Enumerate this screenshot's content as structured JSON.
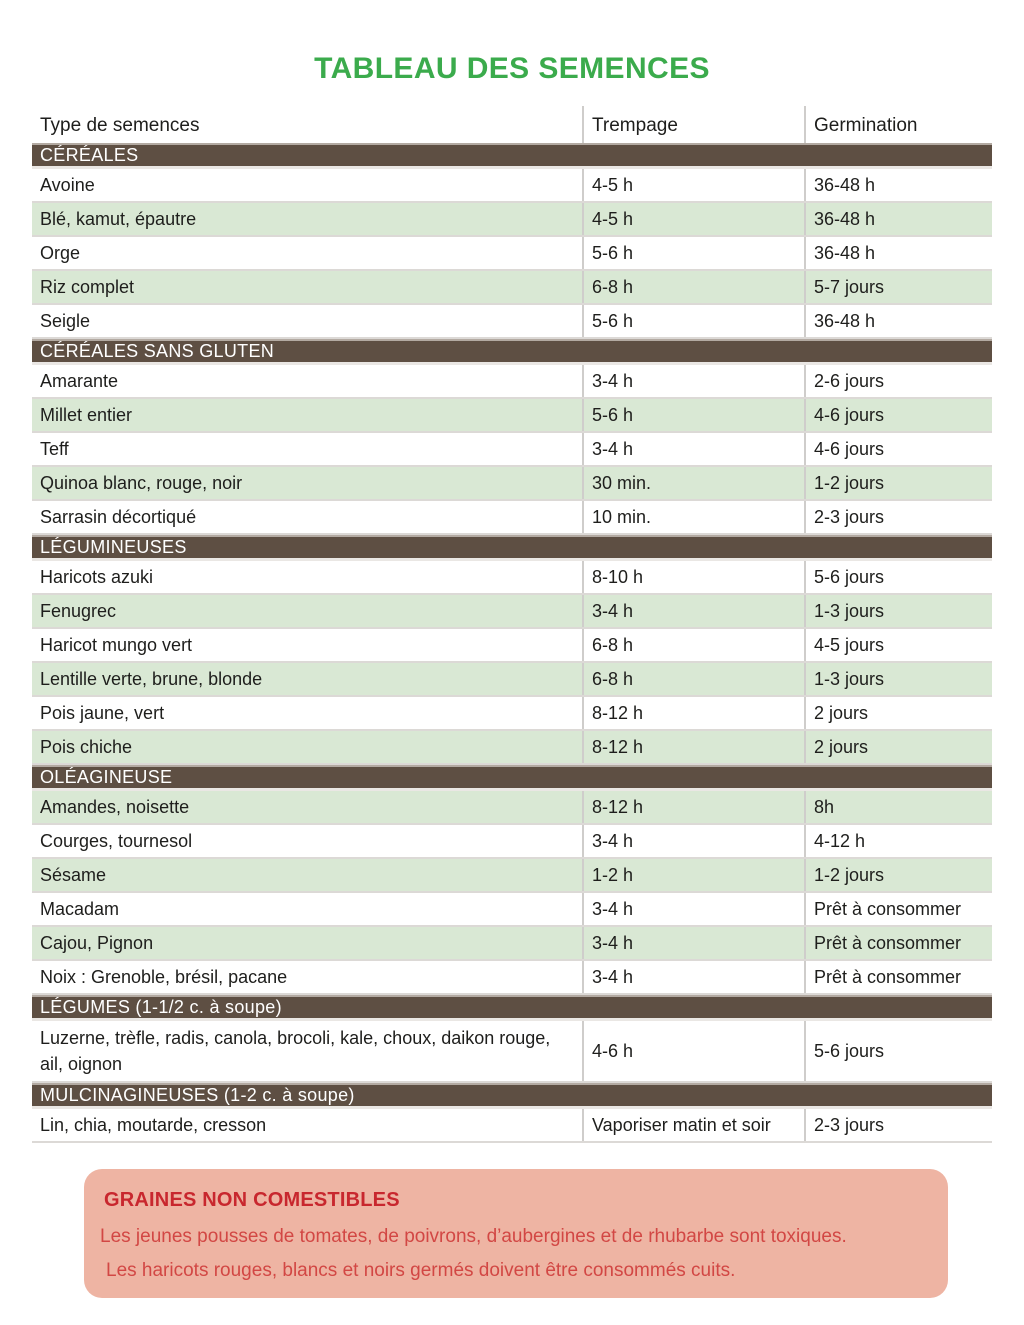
{
  "page": {
    "title": "TABLEAU DES SEMENCES"
  },
  "colors": {
    "title_green": "#3bab4c",
    "section_brown": "#5e4f43",
    "row_green": "#d9e8d4",
    "note_bg": "#eeb4a3",
    "note_title_red": "#c8272e",
    "note_text_red": "#d24744"
  },
  "table": {
    "columns": [
      {
        "label": "Type de semences"
      },
      {
        "label": "Trempage"
      },
      {
        "label": "Germination"
      }
    ],
    "sections": [
      {
        "label": "CÉRÉALES",
        "rows": [
          {
            "type": "Avoine",
            "trempage": "4-5 h",
            "germination": "36-48 h",
            "shaded": false
          },
          {
            "type": "Blé, kamut, épautre",
            "trempage": "4-5 h",
            "germination": "36-48 h",
            "shaded": true
          },
          {
            "type": "Orge",
            "trempage": "5-6 h",
            "germination": "36-48 h",
            "shaded": false
          },
          {
            "type": "Riz complet",
            "trempage": "6-8 h",
            "germination": "5-7 jours",
            "shaded": true
          },
          {
            "type": "Seigle",
            "trempage": "5-6 h",
            "germination": "36-48 h",
            "shaded": false
          }
        ]
      },
      {
        "label": "CÉRÉALES SANS GLUTEN",
        "rows": [
          {
            "type": "Amarante",
            "trempage": "3-4 h",
            "germination": "2-6 jours",
            "shaded": false
          },
          {
            "type": "Millet entier",
            "trempage": "5-6 h",
            "germination": "4-6 jours",
            "shaded": true
          },
          {
            "type": "Teff",
            "trempage": "3-4 h",
            "germination": "4-6 jours",
            "shaded": false
          },
          {
            "type": "Quinoa blanc, rouge, noir",
            "trempage": "30 min.",
            "germination": "1-2 jours",
            "shaded": true
          },
          {
            "type": "Sarrasin décortiqué",
            "trempage": "10 min.",
            "germination": "2-3 jours",
            "shaded": false
          }
        ]
      },
      {
        "label": "LÉGUMINEUSES",
        "rows": [
          {
            "type": "Haricots azuki",
            "trempage": "8-10 h",
            "germination": "5-6 jours",
            "shaded": false
          },
          {
            "type": "Fenugrec",
            "trempage": "3-4 h",
            "germination": "1-3 jours",
            "shaded": true
          },
          {
            "type": "Haricot mungo vert",
            "trempage": "6-8 h",
            "germination": "4-5 jours",
            "shaded": false
          },
          {
            "type": "Lentille verte, brune, blonde",
            "trempage": "6-8 h",
            "germination": "1-3 jours",
            "shaded": true
          },
          {
            "type": "Pois jaune, vert",
            "trempage": "8-12 h",
            "germination": "2 jours",
            "shaded": false
          },
          {
            "type": "Pois chiche",
            "trempage": "8-12 h",
            "germination": "2 jours",
            "shaded": true
          }
        ]
      },
      {
        "label": "OLÉAGINEUSE",
        "rows": [
          {
            "type": "Amandes, noisette",
            "trempage": "8-12 h",
            "germination": "8h",
            "shaded": true
          },
          {
            "type": "Courges, tournesol",
            "trempage": "3-4 h",
            "germination": "4-12 h",
            "shaded": false
          },
          {
            "type": "Sésame",
            "trempage": "1-2 h",
            "germination": "1-2 jours",
            "shaded": true
          },
          {
            "type": "Macadam",
            "trempage": "3-4 h",
            "germination": "Prêt à consommer",
            "shaded": false
          },
          {
            "type": "Cajou, Pignon",
            "trempage": "3-4 h",
            "germination": "Prêt à consommer",
            "shaded": true
          },
          {
            "type": "Noix : Grenoble, brésil, pacane",
            "trempage": "3-4 h",
            "germination": "Prêt à consommer",
            "shaded": false
          }
        ]
      },
      {
        "label": "LÉGUMES (1-1/2 c. à soupe)",
        "rows": [
          {
            "type": "Luzerne, trèfle, radis, canola, brocoli, kale, choux, daikon rouge, ail, oignon",
            "trempage": "4-6 h",
            "germination": "5-6 jours",
            "shaded": false,
            "tall": true
          }
        ]
      },
      {
        "label": "MULCINAGINEUSES (1-2 c. à soupe)",
        "rows": [
          {
            "type": "Lin, chia, moutarde, cresson",
            "trempage": "Vaporiser matin et soir",
            "germination": "2-3 jours",
            "shaded": false
          }
        ]
      }
    ]
  },
  "note": {
    "title": "GRAINES NON COMESTIBLES",
    "lines": [
      "Les jeunes pousses de tomates, de poivrons, d’aubergines et de rhubarbe sont toxiques.",
      "Les haricots rouges, blancs et noirs germés doivent être consommés cuits."
    ]
  }
}
